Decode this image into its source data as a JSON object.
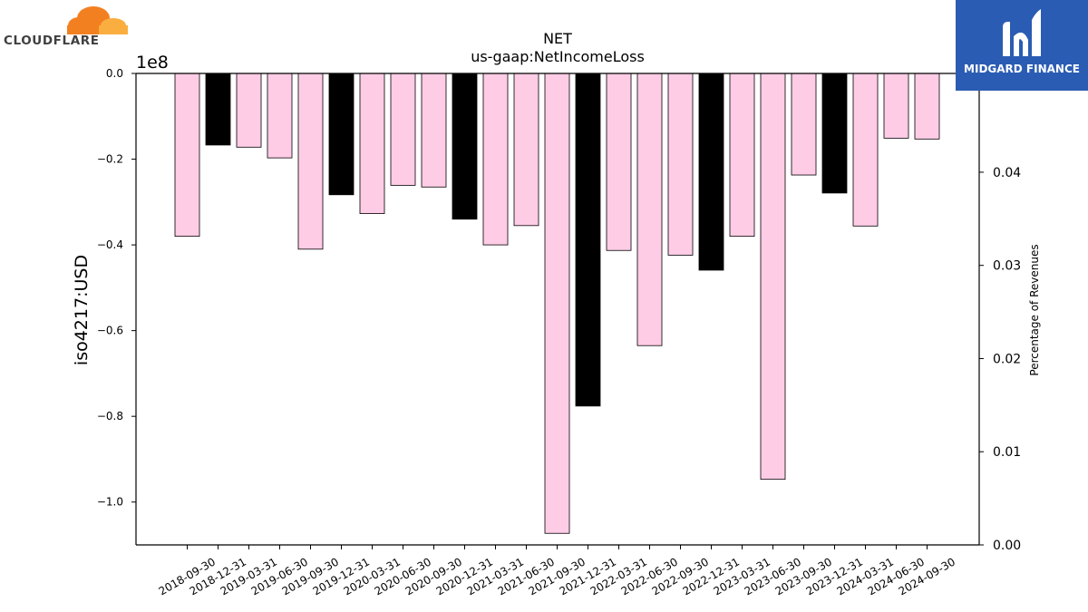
{
  "logos": {
    "left_text": "CLOUDFLARE",
    "right_text": "MIDGARD FINANCE"
  },
  "chart_data": {
    "type": "bar",
    "title": "NET",
    "subtitle": "us-gaap:NetIncomeLoss",
    "ylabel": "iso4217:USD",
    "y2label": "Percentage of Revenues",
    "y_multiplier": "1e8",
    "ylim": [
      -1.1,
      0.0
    ],
    "yticks": [
      "0.0",
      "−0.2",
      "−0.4",
      "−0.6",
      "−0.8",
      "−1.0"
    ],
    "y2lim": [
      0.0,
      0.0506
    ],
    "y2ticks": [
      "0.00",
      "0.01",
      "0.02",
      "0.03",
      "0.04"
    ],
    "categories": [
      "2018-09-30",
      "2018-12-31",
      "2019-03-31",
      "2019-06-30",
      "2019-09-30",
      "2019-12-31",
      "2020-03-31",
      "2020-06-30",
      "2020-09-30",
      "2020-12-31",
      "2021-03-31",
      "2021-06-30",
      "2021-09-30",
      "2021-12-31",
      "2022-03-31",
      "2022-06-30",
      "2022-09-30",
      "2022-12-31",
      "2023-03-31",
      "2023-06-30",
      "2023-09-30",
      "2023-12-31",
      "2024-03-31",
      "2024-06-30",
      "2024-09-30"
    ],
    "values": [
      -0.38,
      -0.167,
      -0.172,
      -0.197,
      -0.41,
      -0.283,
      -0.327,
      -0.261,
      -0.265,
      -0.34,
      -0.4,
      -0.355,
      -1.073,
      -0.776,
      -0.413,
      -0.635,
      -0.424,
      -0.459,
      -0.38,
      -0.947,
      -0.237,
      -0.279,
      -0.356,
      -0.151,
      -0.153
    ],
    "annual_flags": [
      false,
      true,
      false,
      false,
      false,
      true,
      false,
      false,
      false,
      true,
      false,
      false,
      false,
      true,
      false,
      false,
      false,
      true,
      false,
      false,
      false,
      true,
      false,
      false,
      false
    ],
    "colors": {
      "quarter": "#ffcce6",
      "annual": "#000000",
      "edge": "#000000"
    },
    "grid": false
  }
}
